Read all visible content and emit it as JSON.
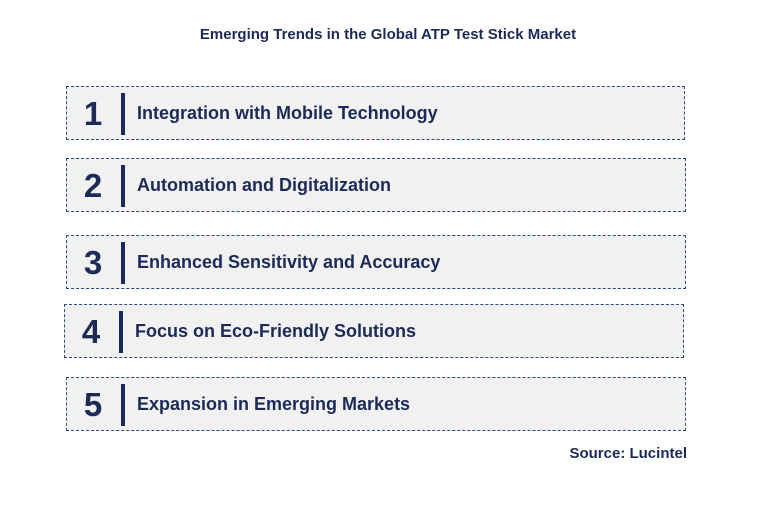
{
  "title": "Emerging Trends in the Global ATP Test Stick Market",
  "trends": [
    {
      "number": "1",
      "label": "Integration with Mobile Technology"
    },
    {
      "number": "2",
      "label": "Automation and Digitalization"
    },
    {
      "number": "3",
      "label": "Enhanced Sensitivity and Accuracy"
    },
    {
      "number": "4",
      "label": "Focus on Eco-Friendly Solutions"
    },
    {
      "number": "5",
      "label": "Expansion in Emerging Markets"
    }
  ],
  "source": "Source: Lucintel",
  "colors": {
    "text": "#1b2a57",
    "box_fill": "#f1f1f1",
    "box_border": "#2f4a7a"
  }
}
